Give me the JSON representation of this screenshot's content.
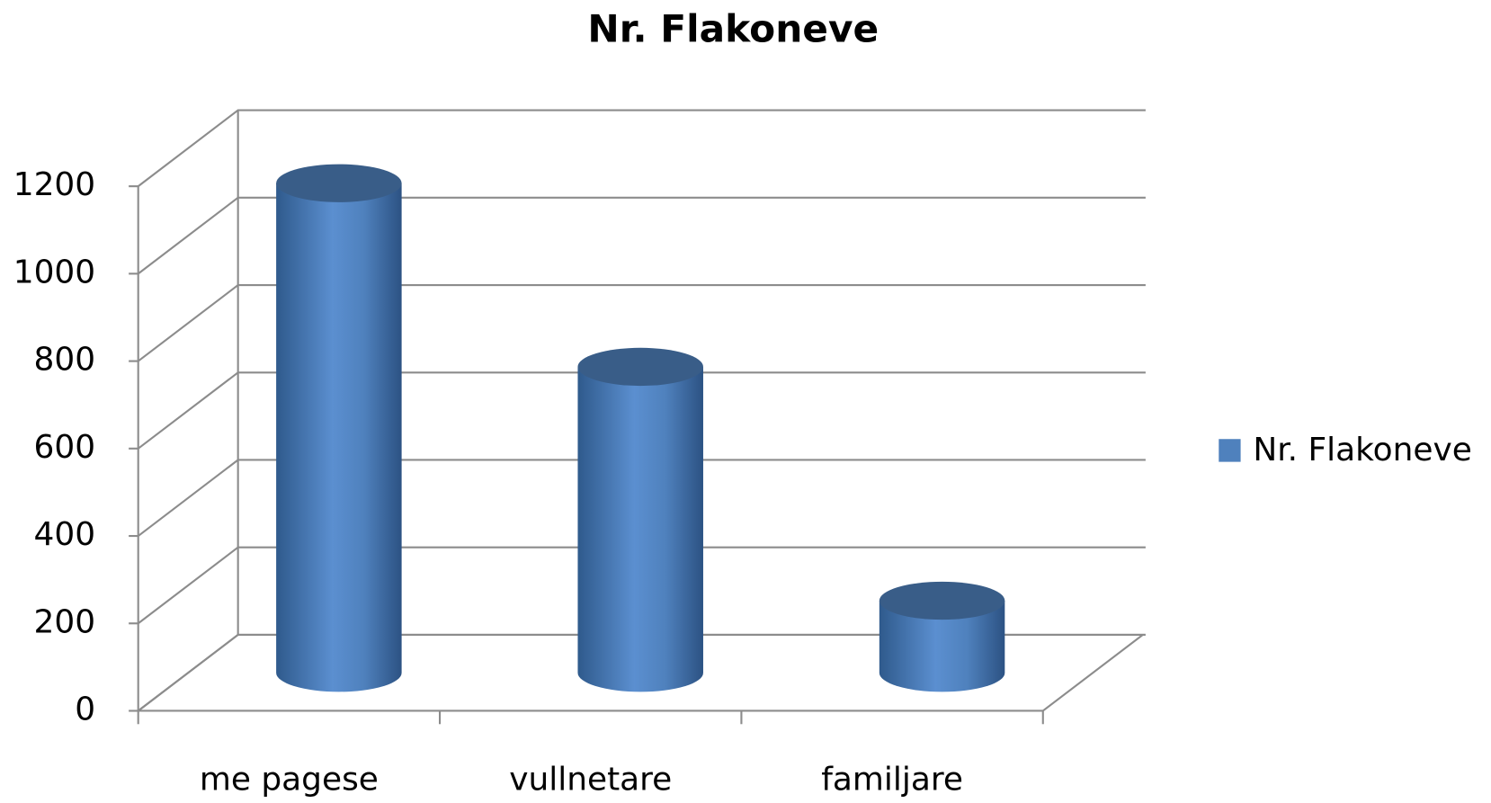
{
  "chart_data": {
    "type": "bar",
    "title": "Nr. Flakoneve",
    "categories": [
      "me pagese",
      "vullnetare",
      "familjare"
    ],
    "series": [
      {
        "name": "Nr. Flakoneve",
        "color": "#4f81bd",
        "values": [
          1120,
          700,
          165
        ]
      }
    ],
    "ylim": [
      0,
      1200
    ],
    "yticks": [
      0,
      200,
      400,
      600,
      800,
      1000,
      1200
    ],
    "grid": true,
    "legend": "right"
  }
}
